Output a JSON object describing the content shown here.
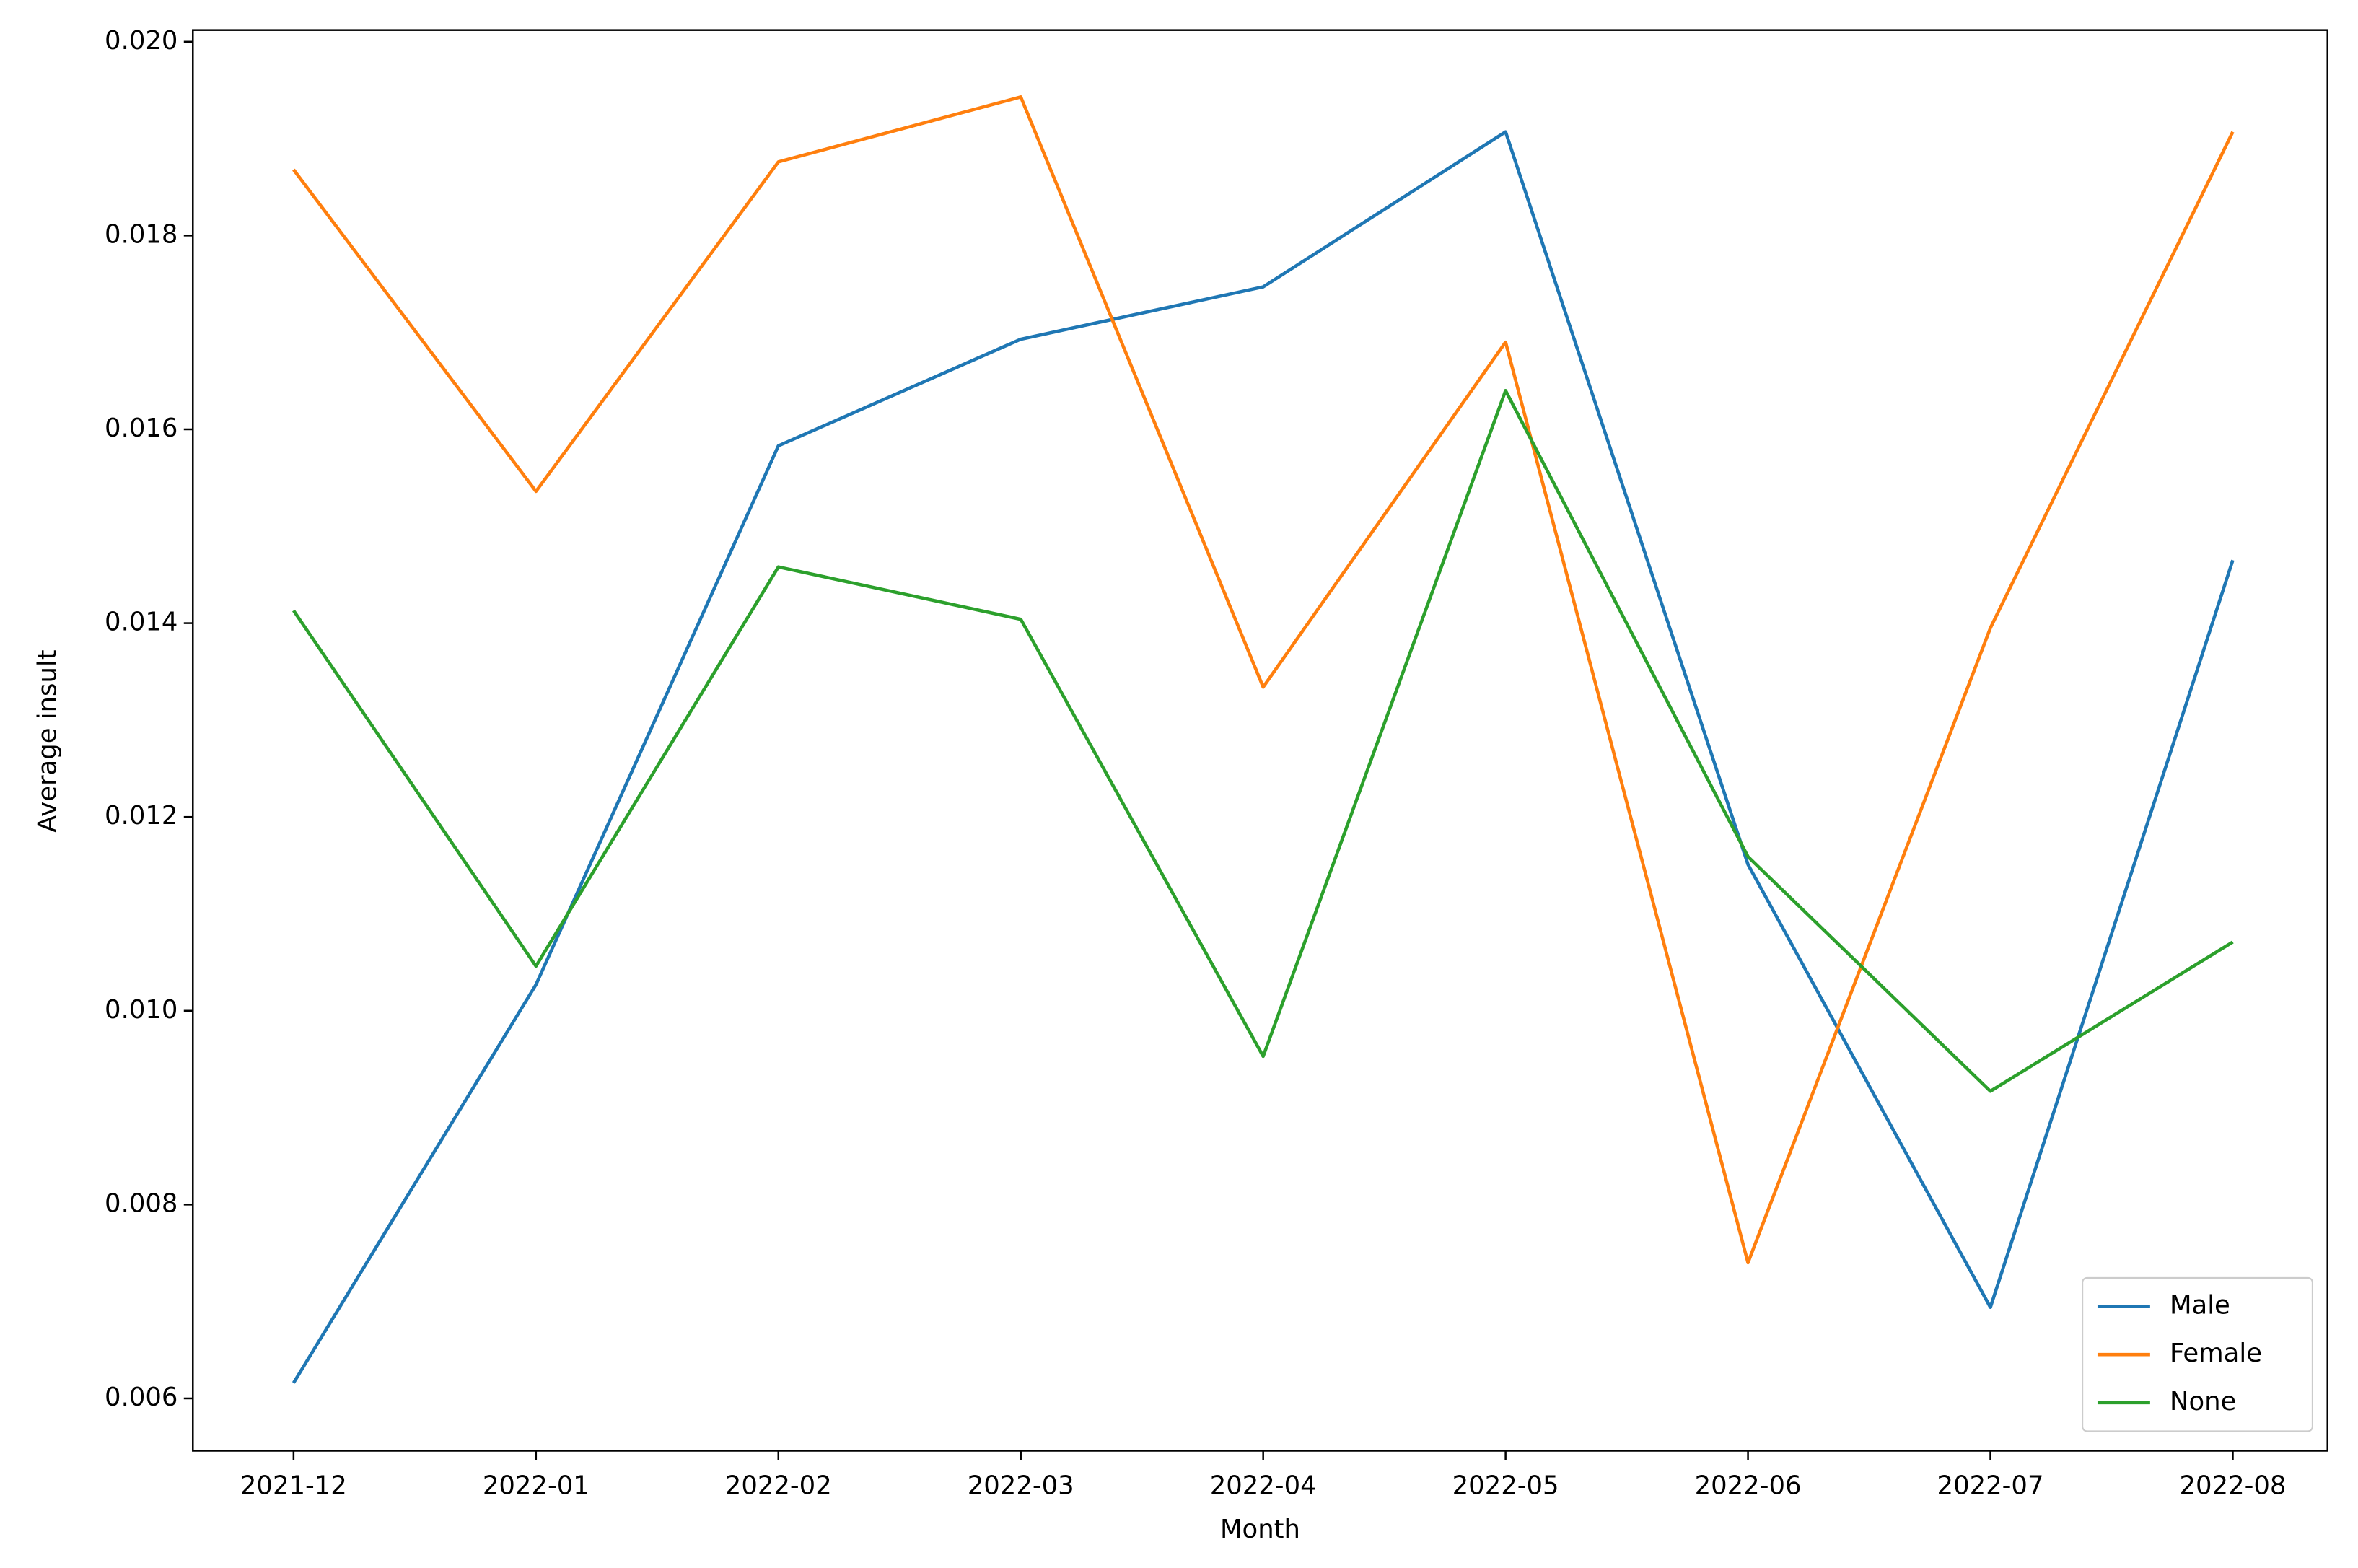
{
  "chart_data": {
    "type": "line",
    "xlabel": "Month",
    "ylabel": "Average insult",
    "categories": [
      "2021-12",
      "2022-01",
      "2022-02",
      "2022-03",
      "2022-04",
      "2022-05",
      "2022-06",
      "2022-07",
      "2022-08"
    ],
    "series": [
      {
        "name": "Male",
        "color": "#1f77b4",
        "values": [
          0.00616,
          0.01027,
          0.01583,
          0.01693,
          0.01747,
          0.01907,
          0.01151,
          0.00694,
          0.01465
        ]
      },
      {
        "name": "Female",
        "color": "#ff7f0e",
        "values": [
          0.01868,
          0.01536,
          0.01876,
          0.01943,
          0.01334,
          0.0169,
          0.0074,
          0.01395,
          0.01907
        ]
      },
      {
        "name": "None",
        "color": "#2ca02c",
        "values": [
          0.01413,
          0.01046,
          0.01458,
          0.01404,
          0.00953,
          0.0164,
          0.01159,
          0.00917,
          0.01071
        ]
      }
    ],
    "ylim": [
      0.00546,
      0.02012
    ],
    "yticks": [
      0.006,
      0.008,
      {
        "value": 0.01,
        "label": "0.010"
      },
      0.012,
      0.014,
      0.016,
      0.018,
      {
        "value": 0.02,
        "label": "0.020"
      }
    ],
    "legend": "lower right",
    "grid": false
  }
}
